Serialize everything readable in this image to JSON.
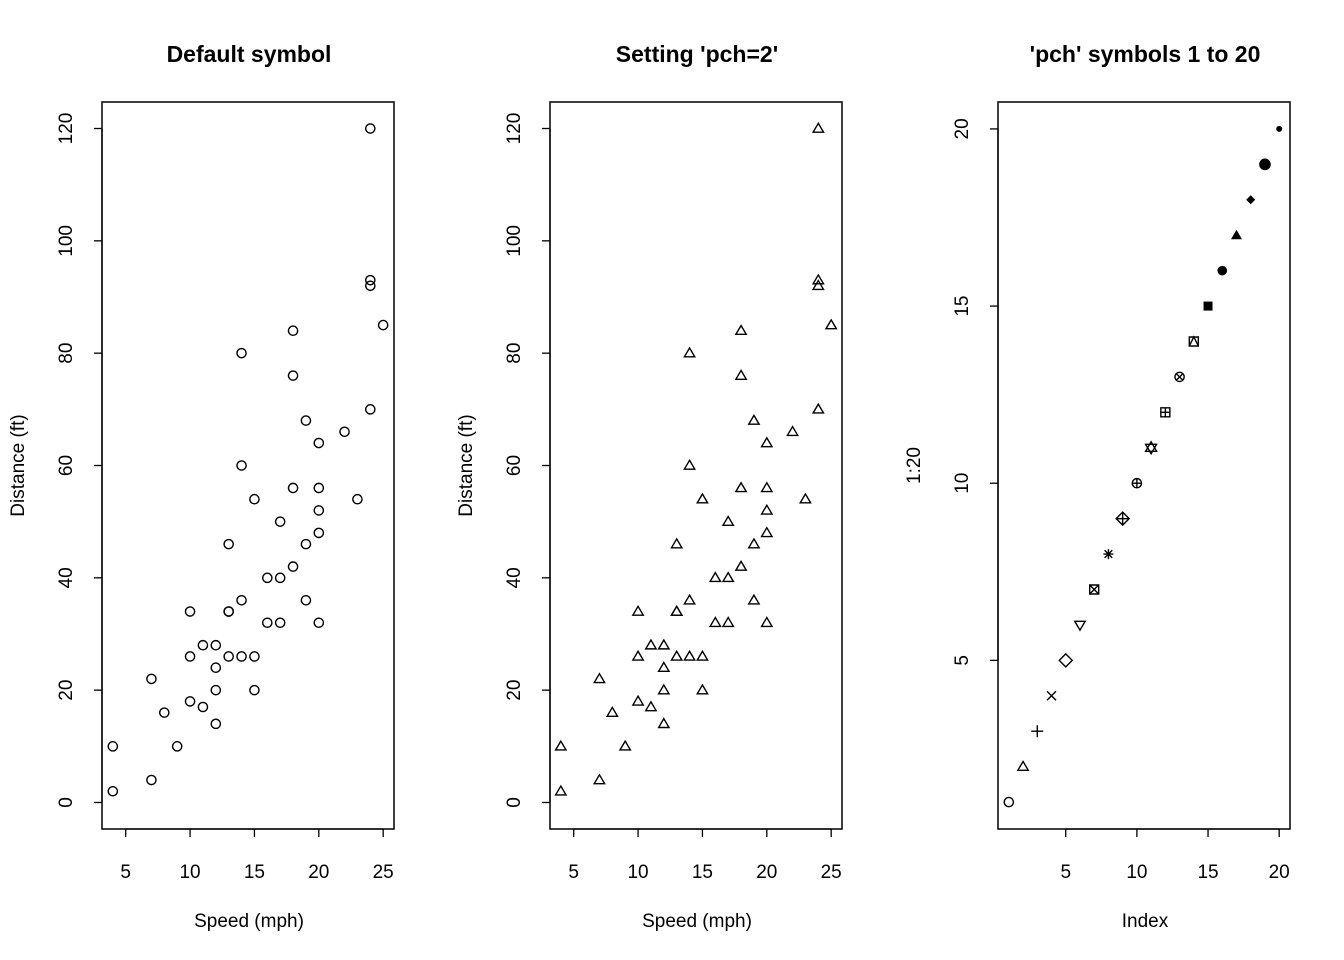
{
  "chart_data": [
    {
      "type": "scatter",
      "title": "Default symbol",
      "xlabel": "Speed (mph)",
      "ylabel": "Distance (ft)",
      "pch": 1,
      "xlim": [
        3.16,
        25.84
      ],
      "ylim": [
        -4.72,
        124.72
      ],
      "xticks": [
        5,
        10,
        15,
        20,
        25
      ],
      "yticks": [
        0,
        20,
        40,
        60,
        80,
        100,
        120
      ],
      "x": [
        4,
        4,
        7,
        7,
        8,
        9,
        10,
        10,
        10,
        11,
        11,
        12,
        12,
        12,
        12,
        13,
        13,
        13,
        13,
        14,
        14,
        14,
        14,
        15,
        15,
        15,
        16,
        16,
        17,
        17,
        17,
        18,
        18,
        18,
        18,
        19,
        19,
        19,
        20,
        20,
        20,
        20,
        20,
        22,
        23,
        24,
        24,
        24,
        24,
        25
      ],
      "y": [
        2,
        10,
        4,
        22,
        16,
        10,
        18,
        26,
        34,
        17,
        28,
        14,
        20,
        24,
        28,
        26,
        34,
        34,
        46,
        26,
        36,
        60,
        80,
        20,
        26,
        54,
        32,
        40,
        32,
        40,
        50,
        42,
        56,
        76,
        84,
        36,
        46,
        68,
        32,
        48,
        52,
        56,
        64,
        66,
        54,
        70,
        92,
        93,
        120,
        85
      ]
    },
    {
      "type": "scatter",
      "title": "Setting 'pch=2'",
      "xlabel": "Speed (mph)",
      "ylabel": "Distance (ft)",
      "pch": 2,
      "xlim": [
        3.16,
        25.84
      ],
      "ylim": [
        -4.72,
        124.72
      ],
      "xticks": [
        5,
        10,
        15,
        20,
        25
      ],
      "yticks": [
        0,
        20,
        40,
        60,
        80,
        100,
        120
      ],
      "x": [
        4,
        4,
        7,
        7,
        8,
        9,
        10,
        10,
        10,
        11,
        11,
        12,
        12,
        12,
        12,
        13,
        13,
        13,
        13,
        14,
        14,
        14,
        14,
        15,
        15,
        15,
        16,
        16,
        17,
        17,
        17,
        18,
        18,
        18,
        18,
        19,
        19,
        19,
        20,
        20,
        20,
        20,
        20,
        22,
        23,
        24,
        24,
        24,
        24,
        25
      ],
      "y": [
        2,
        10,
        4,
        22,
        16,
        10,
        18,
        26,
        34,
        17,
        28,
        14,
        20,
        24,
        28,
        26,
        34,
        34,
        46,
        26,
        36,
        60,
        80,
        20,
        26,
        54,
        32,
        40,
        32,
        40,
        50,
        42,
        56,
        76,
        84,
        36,
        46,
        68,
        32,
        48,
        52,
        56,
        64,
        66,
        54,
        70,
        92,
        93,
        120,
        85
      ]
    },
    {
      "type": "scatter",
      "title": "'pch' symbols 1 to 20",
      "xlabel": "Index",
      "ylabel": "1:20",
      "xlim": [
        0.24,
        20.76
      ],
      "ylim": [
        0.24,
        20.76
      ],
      "xticks": [
        5,
        10,
        15,
        20
      ],
      "yticks": [
        5,
        10,
        15,
        20
      ],
      "x": [
        1,
        2,
        3,
        4,
        5,
        6,
        7,
        8,
        9,
        10,
        11,
        12,
        13,
        14,
        15,
        16,
        17,
        18,
        19,
        20
      ],
      "y": [
        1,
        2,
        3,
        4,
        5,
        6,
        7,
        8,
        9,
        10,
        11,
        12,
        13,
        14,
        15,
        16,
        17,
        18,
        19,
        20
      ],
      "pch": [
        1,
        2,
        3,
        4,
        5,
        6,
        7,
        8,
        9,
        10,
        11,
        12,
        13,
        14,
        15,
        16,
        17,
        18,
        19,
        20
      ]
    }
  ]
}
